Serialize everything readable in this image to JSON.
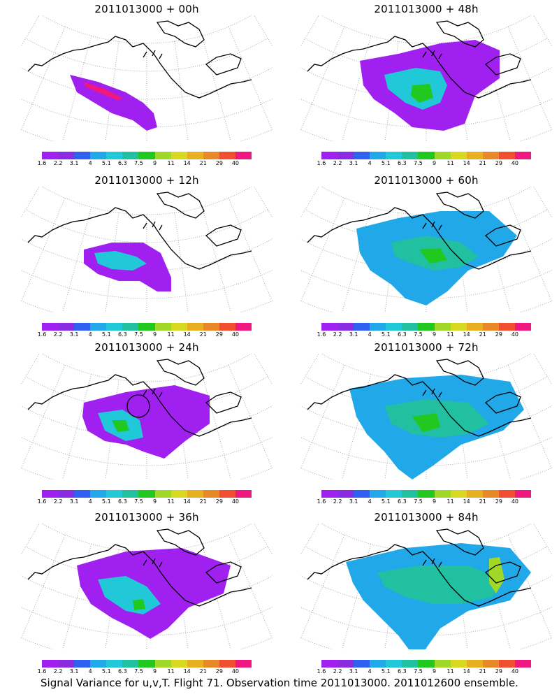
{
  "colorbar": {
    "colors": [
      "#a020f0",
      "#8a2be2",
      "#3060f0",
      "#20a8e8",
      "#20c8d8",
      "#20c0a0",
      "#20c820",
      "#a0d828",
      "#d8d820",
      "#e8b020",
      "#e88828",
      "#f05030",
      "#f01880"
    ],
    "ticks": [
      "1.6",
      "2.2",
      "3.1",
      "4",
      "5.1",
      "6.3",
      "7.5",
      "9",
      "11",
      "14",
      "21",
      "29",
      "40"
    ]
  },
  "panels": [
    {
      "title": "2011013000 + 00h"
    },
    {
      "title": "2011013000 + 48h"
    },
    {
      "title": "2011013000 + 12h"
    },
    {
      "title": "2011013000 + 60h"
    },
    {
      "title": "2011013000 + 24h"
    },
    {
      "title": "2011013000 + 72h"
    },
    {
      "title": "2011013000 + 36h"
    },
    {
      "title": "2011013000 + 84h"
    }
  ],
  "footer": "Signal Variance for u,v,T. Flight 71. Observation time 2011013000. 2011012600 ensemble."
}
